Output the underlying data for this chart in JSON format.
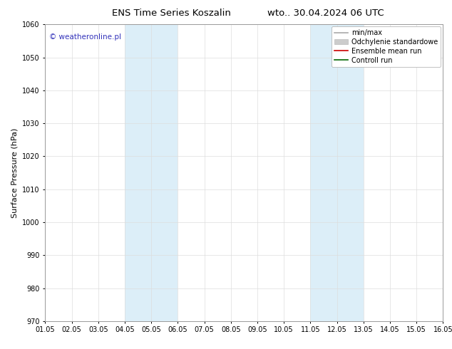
{
  "title_left": "ENS Time Series Koszalin",
  "title_right": "wto.. 30.04.2024 06 UTC",
  "ylabel": "Surface Pressure (hPa)",
  "ylim": [
    970,
    1060
  ],
  "yticks": [
    970,
    980,
    990,
    1000,
    1010,
    1020,
    1030,
    1040,
    1050,
    1060
  ],
  "xlim_start": 0,
  "xlim_end": 15,
  "xtick_labels": [
    "01.05",
    "02.05",
    "03.05",
    "04.05",
    "05.05",
    "06.05",
    "07.05",
    "08.05",
    "09.05",
    "10.05",
    "11.05",
    "12.05",
    "13.05",
    "14.05",
    "15.05",
    "16.05"
  ],
  "xtick_positions": [
    0,
    1,
    2,
    3,
    4,
    5,
    6,
    7,
    8,
    9,
    10,
    11,
    12,
    13,
    14,
    15
  ],
  "shaded_bands": [
    {
      "xmin": 3,
      "xmax": 5,
      "color": "#dceef8"
    },
    {
      "xmin": 10,
      "xmax": 12,
      "color": "#dceef8"
    }
  ],
  "legend_entries": [
    {
      "label": "min/max",
      "color": "#aaaaaa",
      "lw": 1.2,
      "style": "-"
    },
    {
      "label": "Odchylenie standardowe",
      "color": "#cccccc",
      "lw": 5,
      "style": "-"
    },
    {
      "label": "Ensemble mean run",
      "color": "#cc0000",
      "lw": 1.2,
      "style": "-"
    },
    {
      "label": "Controll run",
      "color": "#006600",
      "lw": 1.2,
      "style": "-"
    }
  ],
  "watermark": "© weatheronline.pl",
  "watermark_color": "#3333bb",
  "background_color": "#ffffff",
  "plot_bg_color": "#ffffff",
  "grid_color": "#dddddd",
  "title_fontsize": 9.5,
  "tick_fontsize": 7,
  "ylabel_fontsize": 8,
  "legend_fontsize": 7,
  "watermark_fontsize": 7.5
}
